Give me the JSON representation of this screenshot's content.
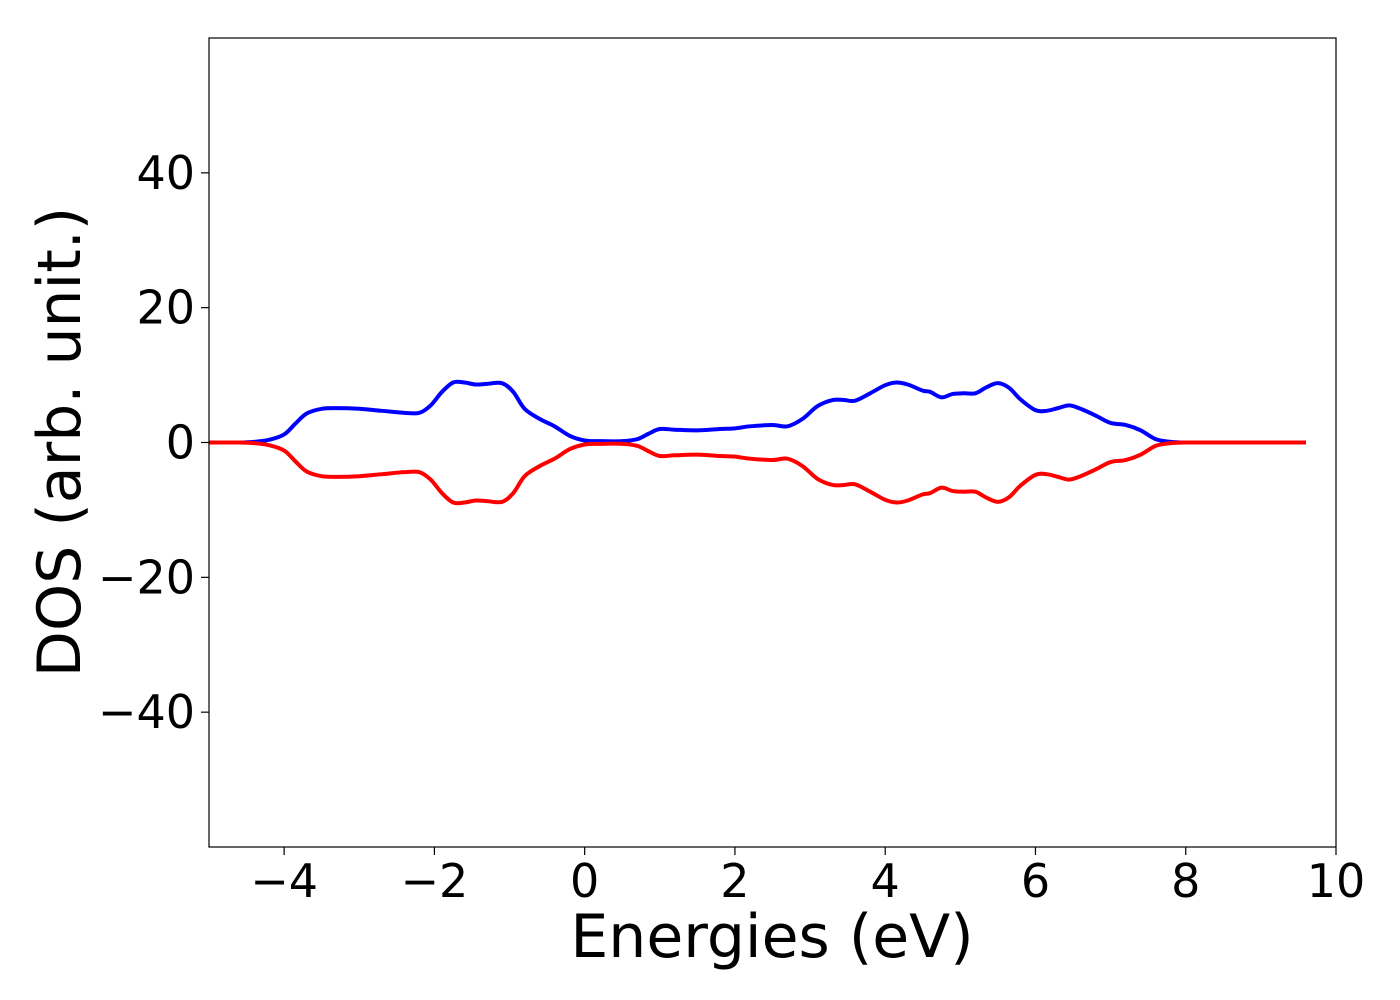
{
  "chart_data": {
    "type": "line",
    "title": "",
    "xlabel": "Energies (eV)",
    "ylabel": "DOS (arb. unit.)",
    "xlim": [
      -5,
      10
    ],
    "ylim": [
      -60,
      60
    ],
    "xticks": [
      -4,
      -2,
      0,
      2,
      4,
      6,
      8,
      10
    ],
    "xtick_labels": [
      "−4",
      "−2",
      "0",
      "2",
      "4",
      "6",
      "8",
      "10"
    ],
    "yticks": [
      -40,
      -20,
      0,
      20,
      40
    ],
    "ytick_labels": [
      "−40",
      "−20",
      "0",
      "20",
      "40"
    ],
    "grid": false,
    "series": [
      {
        "color": "#0000ff",
        "x": [
          -5.0,
          -4.6,
          -4.4,
          -4.2,
          -4.0,
          -3.85,
          -3.7,
          -3.5,
          -3.3,
          -3.0,
          -2.7,
          -2.4,
          -2.2,
          -2.05,
          -1.9,
          -1.75,
          -1.6,
          -1.45,
          -1.3,
          -1.1,
          -0.95,
          -0.8,
          -0.6,
          -0.4,
          -0.2,
          0.0,
          0.2,
          0.5,
          0.7,
          0.85,
          1.0,
          1.2,
          1.5,
          1.8,
          2.0,
          2.2,
          2.5,
          2.7,
          2.9,
          3.1,
          3.3,
          3.45,
          3.6,
          3.8,
          4.0,
          4.15,
          4.3,
          4.5,
          4.6,
          4.75,
          4.9,
          5.05,
          5.2,
          5.35,
          5.5,
          5.65,
          5.8,
          6.0,
          6.15,
          6.3,
          6.45,
          6.6,
          6.8,
          7.0,
          7.2,
          7.4,
          7.6,
          7.8,
          8.0,
          8.5,
          9.0,
          9.6
        ],
        "y": [
          0,
          0,
          0.1,
          0.4,
          1.2,
          2.8,
          4.3,
          5.0,
          5.1,
          5.0,
          4.7,
          4.4,
          4.4,
          5.5,
          7.5,
          8.9,
          8.9,
          8.6,
          8.7,
          8.8,
          7.5,
          5.0,
          3.5,
          2.4,
          1.0,
          0.3,
          0.2,
          0.2,
          0.5,
          1.3,
          2.0,
          1.9,
          1.8,
          2.0,
          2.1,
          2.4,
          2.6,
          2.4,
          3.5,
          5.4,
          6.3,
          6.3,
          6.2,
          7.3,
          8.5,
          8.9,
          8.6,
          7.7,
          7.5,
          6.7,
          7.2,
          7.3,
          7.3,
          8.2,
          8.8,
          8.1,
          6.4,
          4.8,
          4.7,
          5.1,
          5.5,
          5.0,
          4.0,
          2.9,
          2.6,
          1.8,
          0.5,
          0.1,
          0,
          0,
          0,
          0
        ]
      },
      {
        "color": "#ff0000",
        "x": [
          -5.0,
          -4.6,
          -4.4,
          -4.2,
          -4.0,
          -3.85,
          -3.7,
          -3.5,
          -3.3,
          -3.0,
          -2.7,
          -2.4,
          -2.2,
          -2.05,
          -1.9,
          -1.75,
          -1.6,
          -1.45,
          -1.3,
          -1.1,
          -0.95,
          -0.8,
          -0.6,
          -0.4,
          -0.2,
          0.0,
          0.2,
          0.5,
          0.7,
          0.85,
          1.0,
          1.2,
          1.5,
          1.8,
          2.0,
          2.2,
          2.5,
          2.7,
          2.9,
          3.1,
          3.3,
          3.45,
          3.6,
          3.8,
          4.0,
          4.15,
          4.3,
          4.5,
          4.6,
          4.75,
          4.9,
          5.05,
          5.2,
          5.35,
          5.5,
          5.65,
          5.8,
          6.0,
          6.15,
          6.3,
          6.45,
          6.6,
          6.8,
          7.0,
          7.2,
          7.4,
          7.6,
          7.8,
          8.0,
          8.5,
          9.0,
          9.6
        ],
        "y": [
          0,
          0,
          -0.1,
          -0.4,
          -1.2,
          -2.8,
          -4.3,
          -5.0,
          -5.1,
          -5.0,
          -4.7,
          -4.4,
          -4.4,
          -5.5,
          -7.5,
          -8.9,
          -8.9,
          -8.6,
          -8.7,
          -8.8,
          -7.5,
          -5.0,
          -3.5,
          -2.4,
          -1.0,
          -0.3,
          -0.2,
          -0.2,
          -0.5,
          -1.3,
          -2.0,
          -1.9,
          -1.8,
          -2.0,
          -2.1,
          -2.4,
          -2.6,
          -2.4,
          -3.5,
          -5.4,
          -6.3,
          -6.3,
          -6.2,
          -7.3,
          -8.5,
          -8.9,
          -8.6,
          -7.7,
          -7.5,
          -6.7,
          -7.2,
          -7.3,
          -7.3,
          -8.2,
          -8.8,
          -8.1,
          -6.4,
          -4.8,
          -4.7,
          -5.1,
          -5.5,
          -5.0,
          -4.0,
          -2.9,
          -2.6,
          -1.8,
          -0.5,
          -0.1,
          0,
          0,
          0,
          0
        ]
      }
    ]
  }
}
